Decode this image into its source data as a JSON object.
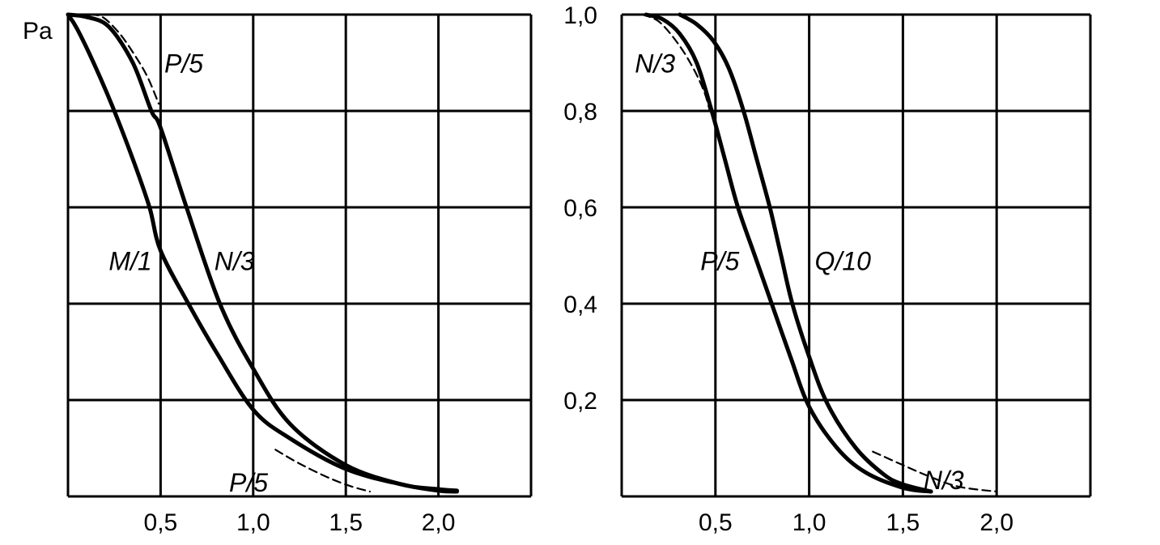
{
  "chart_data": [
    {
      "type": "line",
      "title": "",
      "ylabel": "Pa",
      "xlabel": "",
      "xlim": [
        0,
        2.5
      ],
      "ylim": [
        0,
        1.0
      ],
      "grid": true,
      "xticks": [
        "0,5",
        "1,0",
        "1,5",
        "2,0"
      ],
      "xtick_values": [
        0.5,
        1.0,
        1.5,
        2.0
      ],
      "series": [
        {
          "name": "M/1",
          "style": "solid",
          "x": [
            0,
            0.05,
            0.15,
            0.25,
            0.35,
            0.44,
            0.5,
            0.65,
            0.8,
            1.0,
            1.2,
            1.5,
            1.8,
            2.0,
            2.1
          ],
          "y": [
            1.0,
            0.97,
            0.89,
            0.8,
            0.7,
            0.6,
            0.51,
            0.4,
            0.3,
            0.18,
            0.12,
            0.057,
            0.025,
            0.012,
            0.01
          ]
        },
        {
          "name": "N/3",
          "style": "solid",
          "x": [
            0,
            0.1,
            0.22,
            0.35,
            0.45,
            0.5,
            0.64,
            0.82,
            1.0,
            1.2,
            1.5,
            1.8,
            2.0,
            2.1
          ],
          "y": [
            1.0,
            0.995,
            0.975,
            0.9,
            0.8,
            0.765,
            0.6,
            0.4,
            0.265,
            0.15,
            0.065,
            0.025,
            0.015,
            0.012
          ]
        },
        {
          "name": "P/5",
          "style": "dashed",
          "x": [
            0.12,
            0.19,
            0.28,
            0.36,
            0.43,
            0.49
          ],
          "y": [
            1.0,
            0.994,
            0.96,
            0.916,
            0.87,
            0.815
          ]
        },
        {
          "name": "P/5",
          "style": "dashed",
          "x": [
            1.12,
            1.25,
            1.4,
            1.52,
            1.63
          ],
          "y": [
            0.097,
            0.068,
            0.04,
            0.022,
            0.01
          ]
        }
      ],
      "annotations": [
        {
          "text": "P/5",
          "x": 0.52,
          "y": 0.9
        },
        {
          "text": "M/1",
          "x": 0.22,
          "y": 0.49
        },
        {
          "text": "N/3",
          "x": 0.79,
          "y": 0.49
        },
        {
          "text": "P/5",
          "x": 0.87,
          "y": 0.03
        }
      ]
    },
    {
      "type": "line",
      "title": "",
      "ylabel": "",
      "xlabel": "",
      "xlim": [
        0,
        2.5
      ],
      "ylim": [
        0,
        1.0
      ],
      "grid": true,
      "yticks": [
        "0,2",
        "0,4",
        "0,6",
        "0,8",
        "1,0"
      ],
      "ytick_values": [
        0.2,
        0.4,
        0.6,
        0.8,
        1.0
      ],
      "xticks": [
        "0,5",
        "1,0",
        "1,5",
        "2,0"
      ],
      "xtick_values": [
        0.5,
        1.0,
        1.5,
        2.0
      ],
      "series": [
        {
          "name": "P/5",
          "style": "solid",
          "x": [
            0.13,
            0.22,
            0.31,
            0.4,
            0.48,
            0.55,
            0.62,
            0.71,
            0.8,
            0.9,
            1.0,
            1.15,
            1.3,
            1.5,
            1.65
          ],
          "y": [
            1.0,
            0.99,
            0.96,
            0.9,
            0.8,
            0.7,
            0.6,
            0.5,
            0.4,
            0.29,
            0.186,
            0.1,
            0.05,
            0.018,
            0.01
          ]
        },
        {
          "name": "Q/10",
          "style": "solid",
          "x": [
            0.31,
            0.4,
            0.49,
            0.57,
            0.65,
            0.72,
            0.79,
            0.85,
            0.91,
            1.0,
            1.1,
            1.25,
            1.4,
            1.5,
            1.65
          ],
          "y": [
            1.0,
            0.98,
            0.945,
            0.89,
            0.8,
            0.7,
            0.6,
            0.5,
            0.4,
            0.29,
            0.19,
            0.1,
            0.045,
            0.025,
            0.01
          ]
        },
        {
          "name": "N/3",
          "style": "dashed",
          "x": [
            0.11,
            0.2,
            0.3,
            0.38,
            0.44,
            0.47
          ],
          "y": [
            1.0,
            0.985,
            0.94,
            0.89,
            0.84,
            0.8
          ]
        },
        {
          "name": "N/3",
          "style": "dashed",
          "x": [
            1.34,
            1.5,
            1.65,
            1.8,
            2.0
          ],
          "y": [
            0.093,
            0.065,
            0.04,
            0.02,
            0.01
          ]
        }
      ],
      "annotations": [
        {
          "text": "N/3",
          "x": 0.07,
          "y": 0.9
        },
        {
          "text": "P/5",
          "x": 0.42,
          "y": 0.49
        },
        {
          "text": "Q/10",
          "x": 1.03,
          "y": 0.49
        },
        {
          "text": "N/3",
          "x": 1.61,
          "y": 0.035
        }
      ]
    }
  ]
}
